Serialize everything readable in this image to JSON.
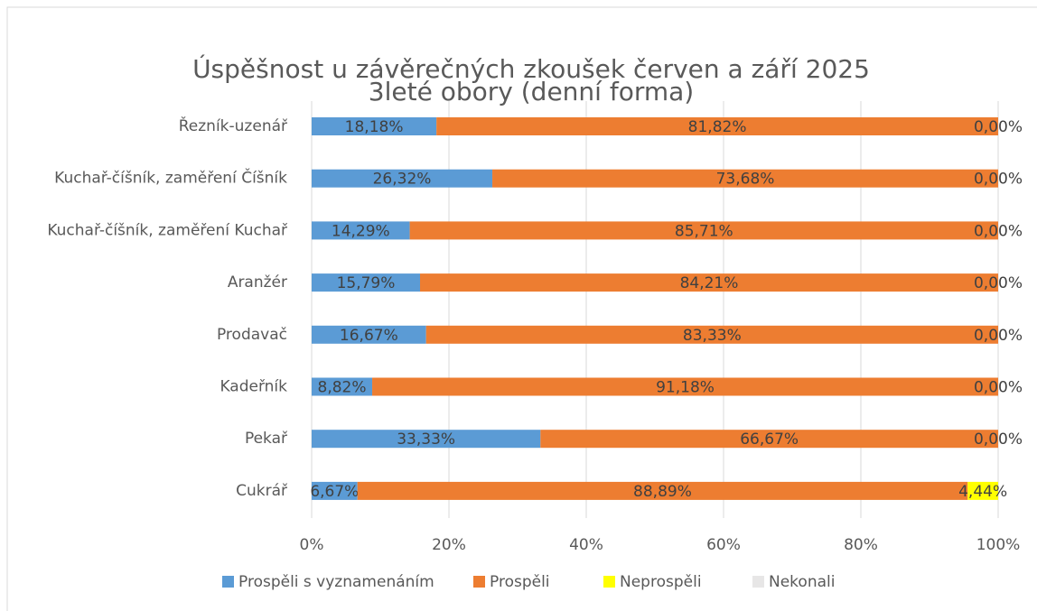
{
  "chart_data": {
    "type": "stacked-bar-horizontal",
    "title": "Úspěšnost u závěrečných zkoušek červen a září 2025",
    "subtitle": "3leté obory (denní forma)",
    "categories": [
      "Řezník-uzenář",
      "Kuchař-číšník, zaměření Číšník",
      "Kuchař-číšník, zaměření Kuchař",
      "Aranžér",
      "Prodavač",
      "Kadeřník",
      "Pekař",
      "Cukrář"
    ],
    "series": [
      {
        "name": "Prospěli s vyznamenáním",
        "color": "#5b9bd5",
        "values": [
          18.18,
          26.32,
          14.29,
          15.79,
          16.67,
          8.82,
          33.33,
          6.67
        ],
        "value_labels": [
          "18,18%",
          "26,32%",
          "14,29%",
          "15,79%",
          "16,67%",
          "8,82%",
          "33,33%",
          "6,67%"
        ]
      },
      {
        "name": "Prospěli",
        "color": "#ed7d31",
        "values": [
          81.82,
          73.68,
          85.71,
          84.21,
          83.33,
          91.18,
          66.67,
          88.89
        ],
        "value_labels": [
          "81,82%",
          "73,68%",
          "85,71%",
          "84,21%",
          "83,33%",
          "91,18%",
          "66,67%",
          "88,89%"
        ]
      },
      {
        "name": "Neprospěli",
        "color": "#ffff00",
        "values": [
          0,
          0,
          0,
          0,
          0,
          0,
          0,
          4.44
        ],
        "value_labels": [
          "0,00%",
          "0,00%",
          "0,00%",
          "0,00%",
          "0,00%",
          "0,00%",
          "0,00%",
          "4,44%"
        ]
      },
      {
        "name": "Nekonali",
        "color": "#e7e6e6",
        "values": [
          0,
          0,
          0,
          0,
          0,
          0,
          0,
          0
        ]
      }
    ],
    "xlim": [
      0,
      100
    ],
    "xticks": [
      {
        "value": 0,
        "label": "0%"
      },
      {
        "value": 20,
        "label": "20%"
      },
      {
        "value": 40,
        "label": "40%"
      },
      {
        "value": 60,
        "label": "60%"
      },
      {
        "value": 80,
        "label": "80%"
      },
      {
        "value": 100,
        "label": "100%"
      }
    ],
    "grid": true,
    "legend": "bottom"
  }
}
